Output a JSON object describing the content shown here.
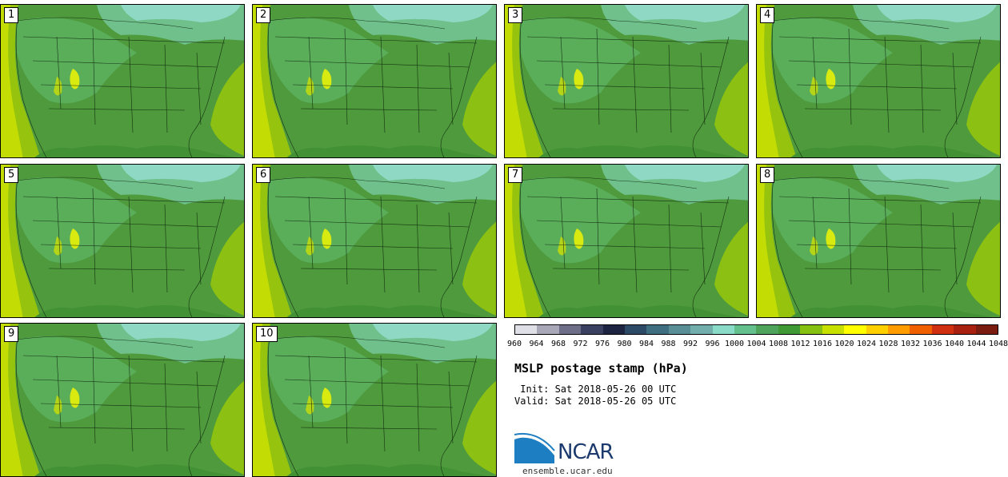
{
  "panels": [
    {
      "label": "1"
    },
    {
      "label": "2"
    },
    {
      "label": "3"
    },
    {
      "label": "4"
    },
    {
      "label": "5"
    },
    {
      "label": "6"
    },
    {
      "label": "7"
    },
    {
      "label": "8"
    },
    {
      "label": "9"
    },
    {
      "label": "10"
    }
  ],
  "colorbar": {
    "colors": [
      "#dfdfe8",
      "#a8a8b8",
      "#6e6e88",
      "#3a4060",
      "#1c2442",
      "#2c4a66",
      "#3e6e80",
      "#5a8e96",
      "#72aeac",
      "#8adcc8",
      "#64c08c",
      "#4ea45a",
      "#3f9a36",
      "#86c010",
      "#c8e000",
      "#ffff00",
      "#ffd000",
      "#ff9c00",
      "#f06000",
      "#d03010",
      "#a82010",
      "#7a1c10"
    ],
    "ticks": [
      "960",
      "964",
      "968",
      "972",
      "976",
      "980",
      "984",
      "988",
      "992",
      "996",
      "1000",
      "1004",
      "1008",
      "1012",
      "1016",
      "1020",
      "1024",
      "1028",
      "1032",
      "1036",
      "1040",
      "1044",
      "1048"
    ]
  },
  "title": "MSLP postage stamp (hPa)",
  "init_line": " Init: Sat 2018-05-26 00 UTC",
  "valid_line": "Valid: Sat 2018-05-26 05 UTC",
  "logo_text": "NCAR",
  "site": "ensemble.ucar.edu"
}
